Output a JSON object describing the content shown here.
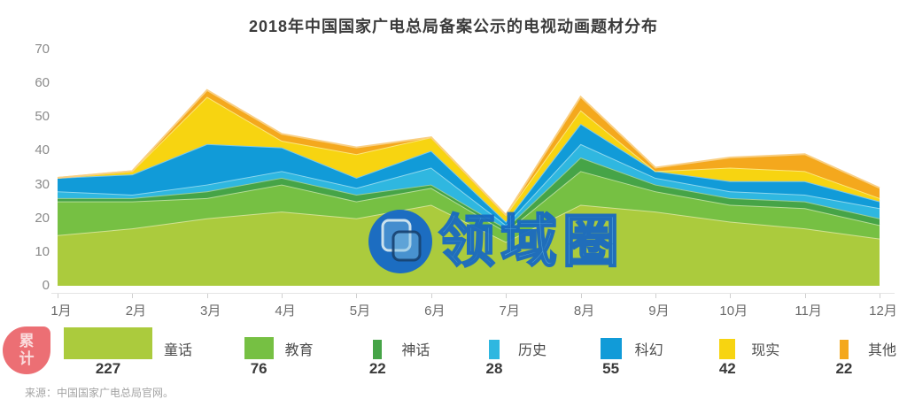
{
  "title": "2018年中国国家广电总局备案公示的电视动画题材分布",
  "watermark": {
    "text": "领域圈",
    "logo": "overlapping-squares-circle-icon",
    "color": "#1668c4"
  },
  "badge": {
    "line1": "累",
    "line2": "计",
    "color": "#ec6f74"
  },
  "source": "来源：中国国家广电总局官网。",
  "chart_data": {
    "type": "area",
    "stacked": true,
    "title": "2018年中国国家广电总局备案公示的电视动画题材分布",
    "categories": [
      "1月",
      "2月",
      "3月",
      "4月",
      "5月",
      "6月",
      "7月",
      "8月",
      "9月",
      "10月",
      "11月",
      "12月"
    ],
    "series": [
      {
        "name": "童话",
        "total": 227,
        "color": "#abcb3d",
        "values": [
          15,
          17,
          20,
          22,
          20,
          24,
          13,
          24,
          22,
          19,
          17,
          14
        ]
      },
      {
        "name": "教育",
        "total": 76,
        "color": "#76c043",
        "values": [
          10,
          8,
          6,
          8,
          5,
          5,
          3,
          10,
          6,
          5,
          6,
          4
        ]
      },
      {
        "name": "神话",
        "total": 22,
        "color": "#46a447",
        "values": [
          1,
          1,
          2,
          2,
          2,
          1,
          1,
          4,
          2,
          2,
          2,
          2
        ]
      },
      {
        "name": "历史",
        "total": 28,
        "color": "#2fb7e0",
        "values": [
          2,
          1,
          2,
          2,
          2,
          5,
          1,
          4,
          2,
          2,
          2,
          3
        ]
      },
      {
        "name": "科幻",
        "total": 55,
        "color": "#119bd8",
        "values": [
          4,
          6,
          12,
          7,
          3,
          5,
          1,
          6,
          2,
          3,
          4,
          2
        ]
      },
      {
        "name": "现实",
        "total": 42,
        "color": "#f7d411",
        "values": [
          0,
          1,
          14,
          2,
          7,
          4,
          2,
          4,
          0,
          4,
          3,
          1
        ]
      },
      {
        "name": "其他",
        "total": 22,
        "color": "#f4a81d",
        "values": [
          0,
          0,
          2,
          2,
          2,
          0,
          0,
          4,
          1,
          3,
          5,
          3
        ]
      }
    ],
    "ylim": [
      0,
      70
    ],
    "yticks": [
      0,
      10,
      20,
      30,
      40,
      50,
      60,
      70
    ],
    "grid": false,
    "legend_position": "bottom"
  }
}
